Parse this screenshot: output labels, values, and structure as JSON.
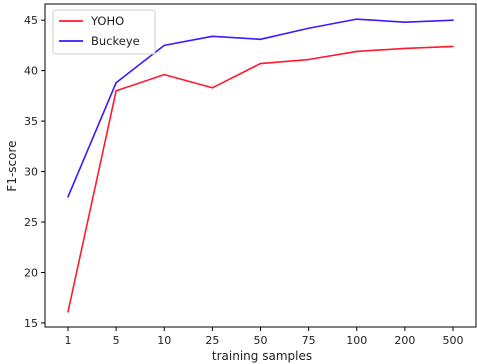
{
  "chart_data": {
    "type": "line",
    "title": "",
    "xlabel": "training samples",
    "ylabel": "F1-score",
    "categories": [
      "1",
      "5",
      "10",
      "25",
      "50",
      "75",
      "100",
      "200",
      "500"
    ],
    "ylim": [
      14.6,
      46.6
    ],
    "yticks": [
      15,
      20,
      25,
      30,
      35,
      40,
      45
    ],
    "grid": false,
    "legend_position": "top-left",
    "series": [
      {
        "name": "YOHO",
        "color": "#ff1a2e",
        "values": [
          16.1,
          38.0,
          39.6,
          38.3,
          40.7,
          41.1,
          41.9,
          42.2,
          42.4
        ]
      },
      {
        "name": "Buckeye",
        "color": "#3a1aff",
        "values": [
          27.5,
          38.8,
          42.5,
          43.4,
          43.1,
          44.2,
          45.1,
          44.8,
          45.0
        ]
      }
    ]
  }
}
